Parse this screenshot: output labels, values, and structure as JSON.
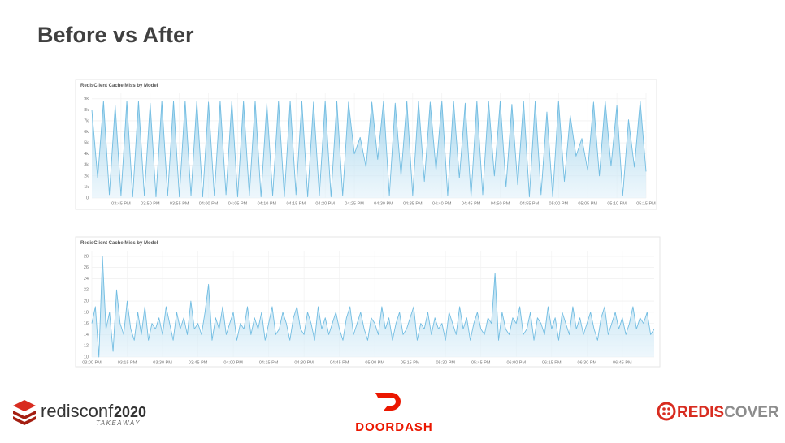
{
  "title": "Before vs After",
  "chart_data": [
    {
      "type": "line",
      "title": "RedisClient Cache Miss by Model",
      "color": "#72bde2",
      "grid": true,
      "ylim": [
        0,
        9500
      ],
      "yticks": [
        0,
        {
          "value": 1000,
          "label": "1k"
        },
        {
          "value": 2000,
          "label": "2k"
        },
        {
          "value": 3000,
          "label": "3k"
        },
        {
          "value": 4000,
          "label": "4k"
        },
        {
          "value": 5000,
          "label": "5k"
        },
        {
          "value": 6000,
          "label": "6k"
        },
        {
          "value": 7000,
          "label": "7k"
        },
        {
          "value": 8000,
          "label": "8k"
        },
        {
          "value": 9000,
          "label": "9k"
        }
      ],
      "categories": [
        null,
        null,
        null,
        null,
        null,
        "03:45 PM",
        null,
        null,
        null,
        null,
        "03:50 PM",
        null,
        null,
        null,
        null,
        "03:55 PM",
        null,
        null,
        null,
        null,
        "04:00 PM",
        null,
        null,
        null,
        null,
        "04:05 PM",
        null,
        null,
        null,
        null,
        "04:10 PM",
        null,
        null,
        null,
        null,
        "04:15 PM",
        null,
        null,
        null,
        null,
        "04:20 PM",
        null,
        null,
        null,
        null,
        "04:25 PM",
        null,
        null,
        null,
        null,
        "04:30 PM",
        null,
        null,
        null,
        null,
        "04:35 PM",
        null,
        null,
        null,
        null,
        "04:40 PM",
        null,
        null,
        null,
        null,
        "04:45 PM",
        null,
        null,
        null,
        null,
        "04:50 PM",
        null,
        null,
        null,
        null,
        "04:55 PM",
        null,
        null,
        null,
        null,
        "05:00 PM",
        null,
        null,
        null,
        null,
        "05:05 PM",
        null,
        null,
        null,
        null,
        "05:10 PM",
        null,
        null,
        null,
        null,
        "05:15 PM"
      ],
      "values": [
        8000,
        1800,
        8800,
        300,
        8400,
        200,
        8800,
        100,
        8800,
        200,
        8600,
        100,
        8800,
        200,
        8800,
        100,
        8800,
        200,
        8800,
        100,
        8700,
        200,
        8800,
        300,
        8800,
        100,
        8800,
        200,
        8800,
        100,
        8600,
        200,
        8800,
        100,
        8800,
        300,
        8800,
        100,
        8700,
        200,
        8800,
        100,
        8800,
        200,
        8700,
        4000,
        5500,
        2800,
        8700,
        3500,
        8800,
        200,
        8600,
        2000,
        8800,
        200,
        8800,
        1500,
        8700,
        2500,
        8800,
        200,
        8800,
        1800,
        8600,
        100,
        8800,
        300,
        8800,
        2000,
        8800,
        1000,
        8500,
        1200,
        8800,
        100,
        8800,
        300,
        7800,
        100,
        8800,
        1500,
        7500,
        3800,
        5400,
        2500,
        8700,
        2000,
        8800,
        2900,
        8400,
        200,
        7100,
        2800,
        8800,
        2400
      ]
    },
    {
      "type": "line",
      "title": "RedisClient Cache Miss by Model",
      "color": "#72bde2",
      "grid": true,
      "ylim": [
        10,
        29
      ],
      "yticks": [
        10,
        12,
        14,
        16,
        18,
        20,
        22,
        24,
        26,
        28
      ],
      "categories": [
        "03:00 PM",
        null,
        null,
        null,
        null,
        null,
        null,
        null,
        null,
        null,
        "03:15 PM",
        null,
        null,
        null,
        null,
        null,
        null,
        null,
        null,
        null,
        "03:30 PM",
        null,
        null,
        null,
        null,
        null,
        null,
        null,
        null,
        null,
        "03:45 PM",
        null,
        null,
        null,
        null,
        null,
        null,
        null,
        null,
        null,
        "04:00 PM",
        null,
        null,
        null,
        null,
        null,
        null,
        null,
        null,
        null,
        "04:15 PM",
        null,
        null,
        null,
        null,
        null,
        null,
        null,
        null,
        null,
        "04:30 PM",
        null,
        null,
        null,
        null,
        null,
        null,
        null,
        null,
        null,
        "04:45 PM",
        null,
        null,
        null,
        null,
        null,
        null,
        null,
        null,
        null,
        "05:00 PM",
        null,
        null,
        null,
        null,
        null,
        null,
        null,
        null,
        null,
        "05:15 PM",
        null,
        null,
        null,
        null,
        null,
        null,
        null,
        null,
        null,
        "05:30 PM",
        null,
        null,
        null,
        null,
        null,
        null,
        null,
        null,
        null,
        "05:45 PM",
        null,
        null,
        null,
        null,
        null,
        null,
        null,
        null,
        null,
        "06:00 PM",
        null,
        null,
        null,
        null,
        null,
        null,
        null,
        null,
        null,
        "06:15 PM",
        null,
        null,
        null,
        null,
        null,
        null,
        null,
        null,
        null,
        "06:30 PM",
        null,
        null,
        null,
        null,
        null,
        null,
        null,
        null,
        null,
        "06:45 PM",
        null,
        null,
        null,
        null,
        null,
        null,
        null,
        null,
        null
      ],
      "values": [
        16,
        19,
        10,
        28,
        15,
        18,
        11,
        22,
        16,
        14,
        20,
        15,
        13,
        18,
        14,
        19,
        13,
        16,
        15,
        17,
        14,
        19,
        16,
        13,
        18,
        15,
        17,
        14,
        20,
        15,
        16,
        14,
        18,
        23,
        13,
        17,
        15,
        19,
        14,
        16,
        18,
        13,
        16,
        15,
        19,
        14,
        17,
        15,
        18,
        13,
        16,
        19,
        14,
        15,
        18,
        16,
        13,
        17,
        19,
        15,
        14,
        18,
        16,
        13,
        19,
        15,
        17,
        14,
        16,
        18,
        15,
        13,
        17,
        19,
        14,
        16,
        18,
        15,
        13,
        17,
        16,
        14,
        19,
        15,
        17,
        13,
        16,
        18,
        14,
        15,
        17,
        19,
        13,
        16,
        15,
        18,
        14,
        17,
        15,
        16,
        13,
        18,
        16,
        14,
        19,
        15,
        17,
        13,
        16,
        18,
        15,
        14,
        17,
        16,
        25,
        13,
        18,
        15,
        14,
        17,
        16,
        19,
        14,
        15,
        18,
        13,
        17,
        16,
        14,
        19,
        15,
        17,
        13,
        18,
        16,
        14,
        19,
        15,
        17,
        14,
        16,
        18,
        15,
        13,
        17,
        19,
        14,
        16,
        18,
        15,
        17,
        14,
        16,
        19,
        15,
        17,
        16,
        18,
        14,
        15
      ]
    }
  ],
  "logos": {
    "redis": "redisconf",
    "year": "2020",
    "tagline": "TAKEAWAY",
    "doordash": "DOORDASH",
    "rediscover_a": "REDIS",
    "rediscover_b": "COVER"
  }
}
